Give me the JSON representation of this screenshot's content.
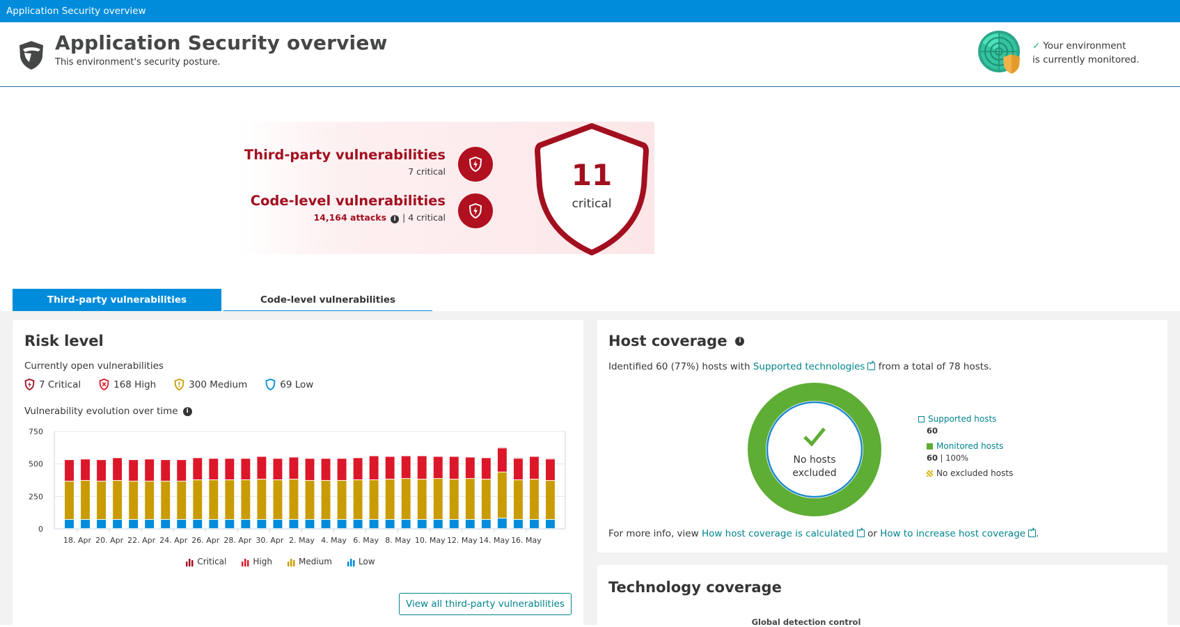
{
  "topbar": {
    "title": "Application Security overview"
  },
  "header": {
    "title": "Application Security overview",
    "subtitle": "This environment's security posture.",
    "monitor_line1": "Your environment",
    "monitor_line2": "is currently monitored."
  },
  "hero": {
    "third_party": {
      "title": "Third-party vulnerabilities",
      "meta": "7 critical"
    },
    "code_level": {
      "title": "Code-level vulnerabilities",
      "attacks": "14,164 attacks",
      "meta": "| 4 critical"
    },
    "total": {
      "number": "11",
      "label": "critical"
    },
    "colors": {
      "critical": "#a20f1f",
      "badge": "#b0101f"
    }
  },
  "tabs": [
    {
      "label": "Third-party vulnerabilities",
      "active": true
    },
    {
      "label": "Code-level vulnerabilities",
      "active": false
    }
  ],
  "risk": {
    "title": "Risk level",
    "open_label": "Currently open vulnerabilities",
    "counts": [
      {
        "label": "7 Critical",
        "icon": "shield-bolt-icon",
        "color": "#a20f1f"
      },
      {
        "label": "168 High",
        "icon": "shield-x-icon",
        "color": "#dc172a"
      },
      {
        "label": "300 Medium",
        "icon": "shield-exclamation-icon",
        "color": "#c99c05"
      },
      {
        "label": "69 Low",
        "icon": "shield-outline-icon",
        "color": "#008cdb"
      }
    ],
    "evolution_label": "Vulnerability evolution over time",
    "view_all_button": "View all third-party vulnerabilities"
  },
  "chart_data": {
    "type": "bar",
    "stacked": true,
    "title": "Vulnerability evolution over time",
    "xlabel": "",
    "ylabel": "",
    "ylim": [
      0,
      750
    ],
    "yticks": [
      0,
      250,
      500,
      750
    ],
    "grid": true,
    "legend_position": "bottom",
    "x_tick_labels": [
      "18. Apr",
      "20. Apr",
      "22. Apr",
      "24. Apr",
      "26. Apr",
      "28. Apr",
      "30. Apr",
      "2. May",
      "4. May",
      "6. May",
      "8. May",
      "10. May",
      "12. May",
      "14. May",
      "16. May"
    ],
    "categories": [
      "17. Apr",
      "18. Apr",
      "19. Apr",
      "20. Apr",
      "21. Apr",
      "22. Apr",
      "23. Apr",
      "24. Apr",
      "25. Apr",
      "26. Apr",
      "27. Apr",
      "28. Apr",
      "29. Apr",
      "30. Apr",
      "1. May",
      "2. May",
      "3. May",
      "4. May",
      "5. May",
      "6. May",
      "7. May",
      "8. May",
      "9. May",
      "10. May",
      "11. May",
      "12. May",
      "13. May",
      "14. May",
      "15. May",
      "16. May",
      "17. May"
    ],
    "series": [
      {
        "name": "Low",
        "color": "#008cdb",
        "values": [
          70,
          70,
          70,
          70,
          70,
          70,
          70,
          70,
          70,
          70,
          70,
          70,
          70,
          70,
          70,
          70,
          70,
          70,
          70,
          70,
          70,
          70,
          70,
          70,
          70,
          70,
          70,
          80,
          70,
          70,
          70
        ]
      },
      {
        "name": "Medium",
        "color": "#c99c05",
        "values": [
          295,
          300,
          295,
          300,
          295,
          295,
          295,
          295,
          305,
          305,
          305,
          305,
          310,
          305,
          310,
          300,
          300,
          300,
          305,
          305,
          310,
          315,
          310,
          315,
          310,
          315,
          310,
          355,
          305,
          310,
          300
        ]
      },
      {
        "name": "High",
        "color": "#dc172a",
        "values": [
          165,
          165,
          165,
          175,
          165,
          170,
          165,
          165,
          170,
          165,
          165,
          165,
          175,
          165,
          170,
          170,
          170,
          170,
          170,
          185,
          175,
          175,
          180,
          170,
          175,
          165,
          165,
          185,
          165,
          175,
          165
        ]
      },
      {
        "name": "Critical",
        "color": "#a20f1f",
        "values": [
          0,
          0,
          0,
          0,
          0,
          0,
          0,
          0,
          0,
          0,
          0,
          0,
          0,
          0,
          0,
          0,
          0,
          0,
          0,
          0,
          0,
          0,
          0,
          0,
          0,
          0,
          0,
          7,
          7,
          0,
          7
        ]
      }
    ],
    "legend": [
      "Critical",
      "High",
      "Medium",
      "Low"
    ]
  },
  "host": {
    "title": "Host coverage",
    "desc_prefix": "Identified 60 (77%) hosts with ",
    "desc_link": "Supported technologies",
    "desc_suffix": " from a total of 78 hosts.",
    "donut_label_1": "No hosts",
    "donut_label_2": "excluded",
    "legend": {
      "supported_label": "Supported hosts",
      "supported_value": "60",
      "monitored_label": "Monitored hosts",
      "monitored_value": "60",
      "monitored_pct": " | 100%",
      "excluded_label": "No excluded hosts"
    },
    "more_prefix": "For more info, view ",
    "more_link1": "How host coverage is calculated",
    "more_or": " or ",
    "more_link2": "How to increase host coverage",
    "more_suffix": "."
  },
  "tech": {
    "title": "Technology coverage",
    "global_detection": "Global detection control"
  }
}
